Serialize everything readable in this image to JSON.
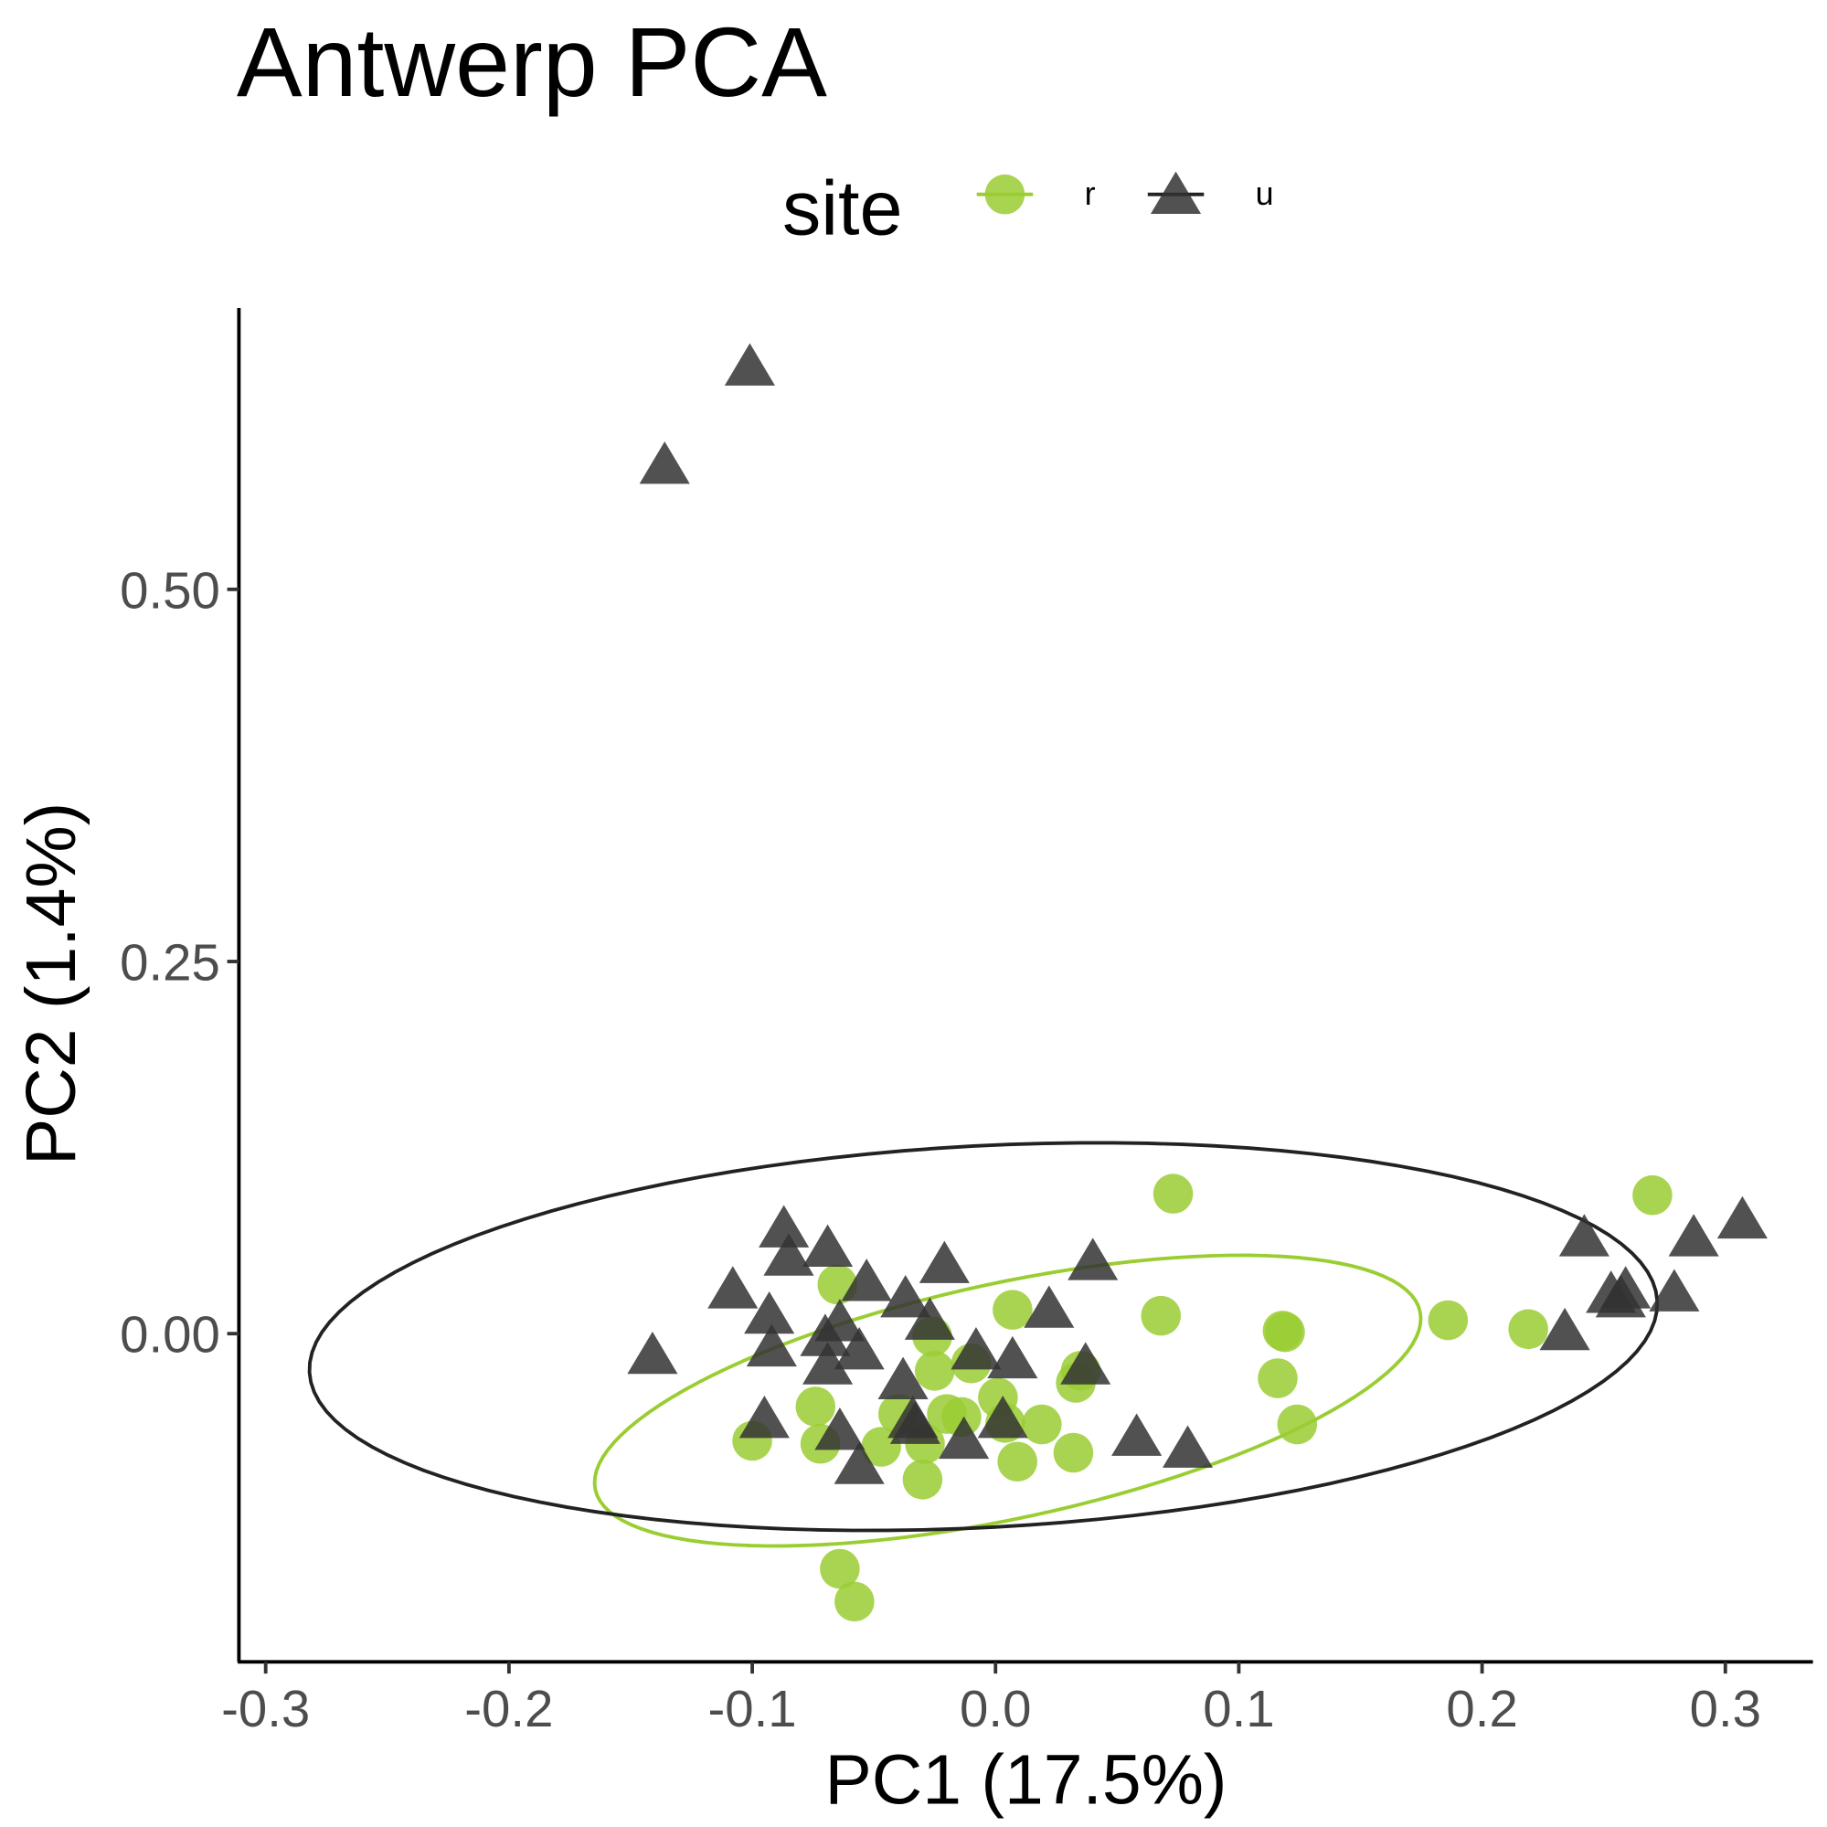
{
  "chart_data": {
    "type": "scatter",
    "title": "Antwerp PCA",
    "x_label": "PC1 (17.5%)",
    "y_label": "PC2 (1.4%)",
    "legend_title": "site",
    "xlim": [
      -0.311,
      0.336
    ],
    "ylim": [
      -0.2205,
      0.689
    ],
    "xticks": [
      -0.3,
      -0.2,
      -0.1,
      {
        "value": 0,
        "label": "0.0"
      },
      0.1,
      0.2,
      0.3
    ],
    "yticks": [
      {
        "value": 0,
        "label": "0.00"
      },
      0.25,
      {
        "value": 0.5,
        "label": "0.50"
      }
    ],
    "series": [
      {
        "name": "r",
        "color": "#9acd32",
        "shape": "circle",
        "ellipse": {
          "center": [
            0.005,
            -0.045
          ],
          "axis_a": [
            0.1695,
            0.0598
          ],
          "axis_b": [
            -0.0101,
            0.0772
          ]
        },
        "x": [
          0.073,
          0.27,
          -0.065,
          0.007,
          0.068,
          0.186,
          0.219,
          0.118,
          0.119,
          -0.026,
          -0.01,
          -0.025,
          0.035,
          0.033,
          0.116,
          -0.074,
          0.001,
          -0.04,
          -0.02,
          -0.014,
          0.004,
          0.019,
          0.124,
          -0.1,
          -0.072,
          -0.047,
          -0.029,
          0.032,
          0.009,
          -0.03,
          -0.064,
          -0.058
        ],
        "values": [
          0.094,
          0.093,
          0.033,
          0.016,
          0.012,
          0.009,
          0.003,
          0.002,
          0.001,
          -0.002,
          -0.02,
          -0.025,
          -0.025,
          -0.033,
          -0.03,
          -0.049,
          -0.043,
          -0.054,
          -0.054,
          -0.056,
          -0.06,
          -0.061,
          -0.061,
          -0.072,
          -0.074,
          -0.076,
          -0.074,
          -0.08,
          -0.086,
          -0.098,
          -0.158,
          -0.18
        ]
      },
      {
        "name": "u",
        "color": "#333333",
        "shape": "triangle",
        "ellipse": {
          "center": [
            -0.005,
            -0.002
          ],
          "axis_a": [
            0.277,
            0.024
          ],
          "axis_b": [
            -0.0041,
            0.128
          ]
        },
        "x": [
          -0.101,
          -0.136,
          -0.087,
          -0.069,
          -0.085,
          -0.021,
          0.04,
          -0.053,
          -0.108,
          -0.037,
          -0.093,
          -0.027,
          0.022,
          -0.064,
          0.242,
          0.287,
          0.307,
          0.253,
          0.259,
          0.257,
          0.279,
          0.234,
          -0.141,
          -0.092,
          -0.07,
          -0.056,
          -0.069,
          -0.008,
          0.007,
          0.037,
          -0.038,
          -0.095,
          -0.064,
          -0.034,
          -0.033,
          0.003,
          0.058,
          0.079,
          -0.013,
          -0.056
        ],
        "values": [
          0.65,
          0.584,
          0.071,
          0.058,
          0.052,
          0.047,
          0.049,
          0.035,
          0.03,
          0.024,
          0.013,
          0.009,
          0.017,
          0.008,
          0.065,
          0.065,
          0.077,
          0.027,
          0.03,
          0.024,
          0.028,
          0.002,
          -0.014,
          -0.009,
          -0.002,
          -0.011,
          -0.021,
          -0.011,
          -0.017,
          -0.021,
          -0.031,
          -0.057,
          -0.065,
          -0.057,
          -0.061,
          -0.057,
          -0.069,
          -0.077,
          -0.071,
          -0.088
        ]
      }
    ]
  }
}
